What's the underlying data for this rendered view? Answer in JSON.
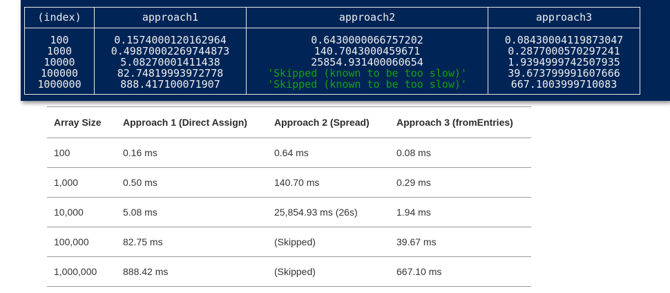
{
  "console": {
    "headers": [
      "(index)",
      "approach1",
      "approach2",
      "approach3"
    ],
    "index": [
      "100",
      "1000",
      "10000",
      "100000",
      "1000000"
    ],
    "approach1": [
      "0.1574000120162964",
      "0.49870002269744873",
      "5.08270001411438",
      "82.74819993972778",
      "888.417100071907"
    ],
    "approach2": [
      "0.6430000066757202",
      "140.7043000459671",
      "25854.931400060654",
      "'Skipped (known to be too slow)'",
      "'Skipped (known to be too slow)'"
    ],
    "approach3": [
      "0.08430004119873047",
      "0.2877000570297241",
      "1.9394999742507935",
      "39.673799991607666",
      "667.1003999710083"
    ]
  },
  "results": {
    "headers": [
      "Array Size",
      "Approach 1 (Direct Assign)",
      "Approach 2 (Spread)",
      "Approach 3 (fromEntries)"
    ],
    "rows": [
      [
        "100",
        "0.16 ms",
        "0.64 ms",
        "0.08 ms"
      ],
      [
        "1,000",
        "0.50 ms",
        "140.70 ms",
        "0.29 ms"
      ],
      [
        "10,000",
        "5.08 ms",
        "25,854.93 ms (26s)",
        "1.94 ms"
      ],
      [
        "100,000",
        "82.75 ms",
        "(Skipped)",
        "39.67 ms"
      ],
      [
        "1,000,000",
        "888.42 ms",
        "(Skipped)",
        "667.10 ms"
      ]
    ]
  },
  "colors": {
    "console_bg": "#012456",
    "console_text": "#eeeeee",
    "console_string": "#13a10e"
  }
}
